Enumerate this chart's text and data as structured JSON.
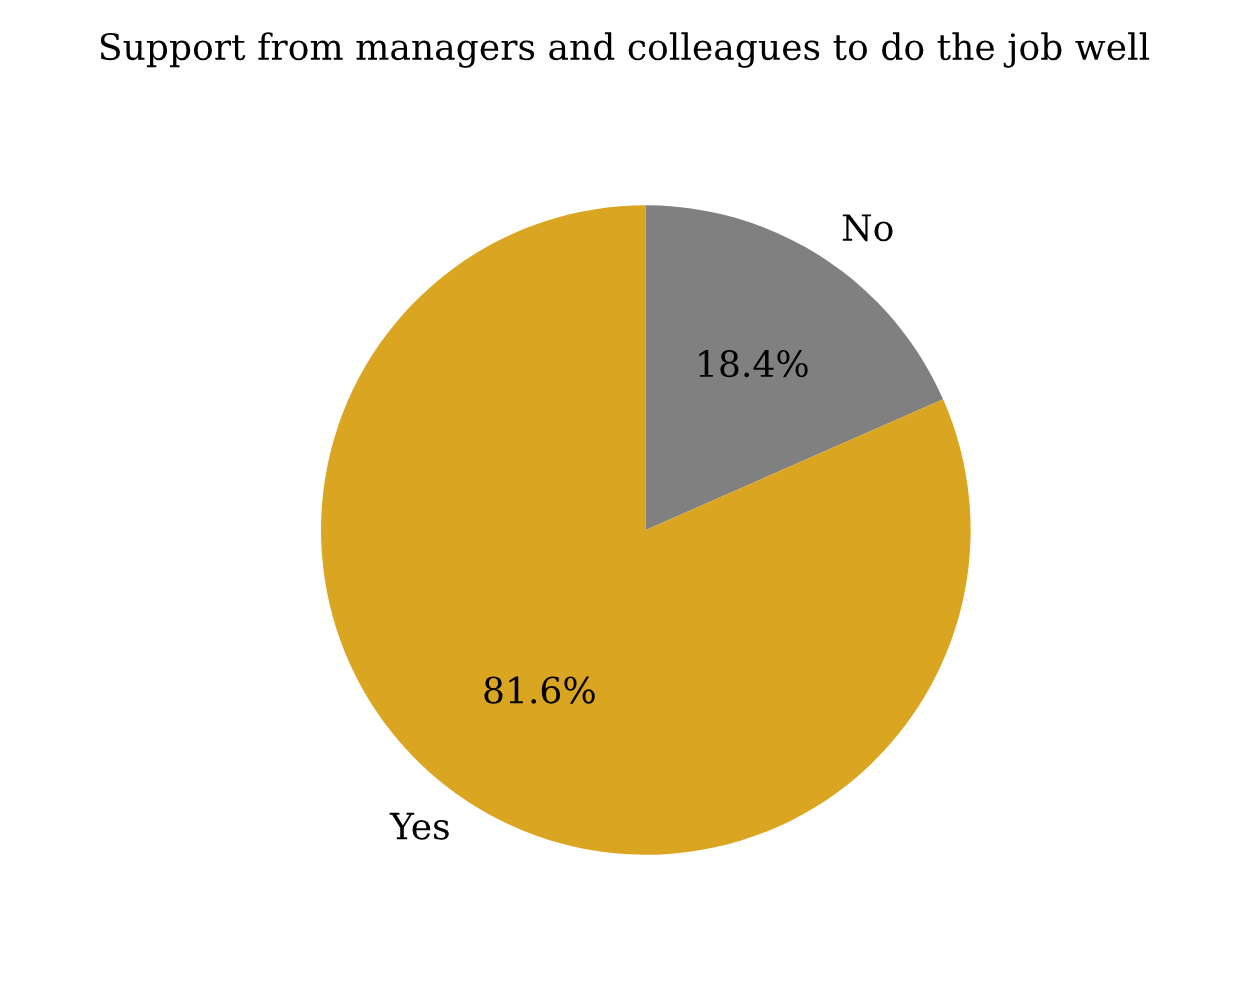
{
  "chart_data": {
    "type": "pie",
    "title": "Support from managers and colleagues to do the job well",
    "categories": [
      "No",
      "Yes"
    ],
    "values": [
      18.4,
      81.6
    ],
    "value_labels": [
      "18.4%",
      "81.6%"
    ],
    "colors": [
      "#808080",
      "#daa520"
    ]
  }
}
